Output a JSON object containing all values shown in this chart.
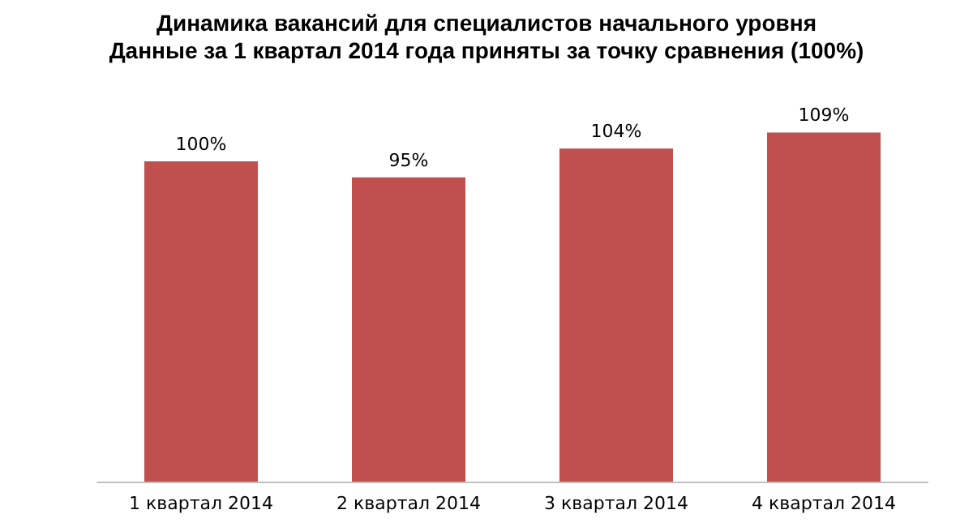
{
  "chart_data": {
    "type": "bar",
    "title": "Динамика вакансий для специалистов начального уровня",
    "subtitle": "Данные за 1 квартал 2014 года приняты за точку сравнения (100%)",
    "categories": [
      "1 квартал 2014",
      "2 квартал 2014",
      "3 квартал 2014",
      "4 квартал 2014"
    ],
    "values": [
      100,
      95,
      104,
      109
    ],
    "value_labels": [
      "100%",
      "95%",
      "104%",
      "109%"
    ],
    "color": "#c0504d"
  }
}
